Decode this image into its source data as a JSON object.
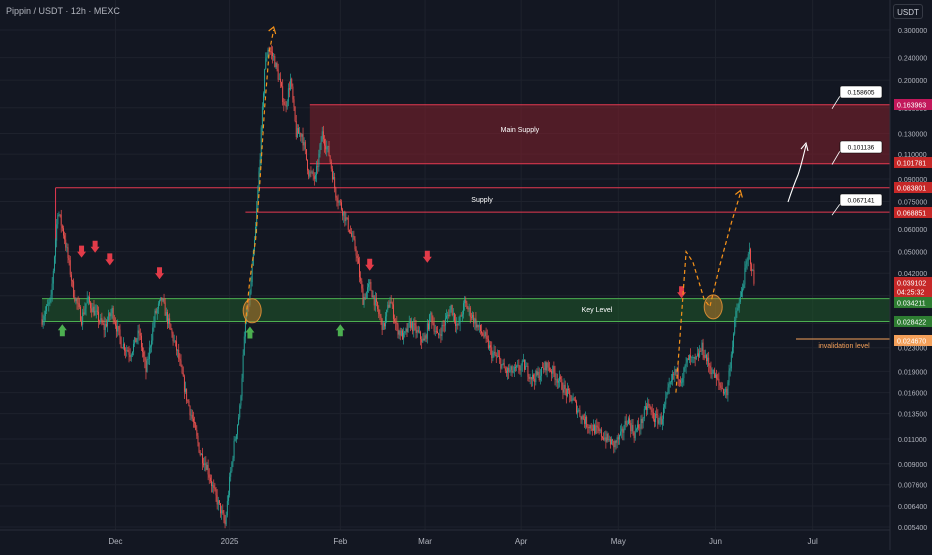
{
  "header": {
    "symbol_title": "Pippin / USDT · 12h · MEXC",
    "currency": "USDT"
  },
  "colors": {
    "background": "#131722",
    "grid": "#1e222d",
    "axis_text": "#b2b5be",
    "candle_up": "#26a69a",
    "candle_down": "#ef5350",
    "supply_zone": "#7a1f2b",
    "key_zone": "#1f5a2a",
    "projection": "#f7931a",
    "arrow_down": "#e23b49",
    "arrow_up": "#4caf50",
    "invalidation": "#f4a05a"
  },
  "chart_data": {
    "type": "candlestick",
    "price_scale": "log",
    "y_ticks": [
      "0.300000",
      "0.240000",
      "0.200000",
      "0.160000",
      "0.130000",
      "0.110000",
      "0.090000",
      "0.075000",
      "0.060000",
      "0.050000",
      "0.042000",
      "0.035000",
      "0.028000",
      "0.023000",
      "0.019000",
      "0.016000",
      "0.013500",
      "0.011000",
      "0.009000",
      "0.007600",
      "0.006400",
      "0.005400"
    ],
    "x_ticks": [
      "Dec",
      "2025",
      "Feb",
      "Mar",
      "Apr",
      "May",
      "Jun",
      "Jul"
    ],
    "price_labels": [
      {
        "text": "0.163963",
        "color": "#c2185b"
      },
      {
        "text": "0.101781",
        "color": "#c62828"
      },
      {
        "text": "0.083801",
        "color": "#c62828"
      },
      {
        "text": "0.068851",
        "color": "#c62828"
      },
      {
        "text": "0.039102",
        "color": "#c62828"
      },
      {
        "text": "04:25:32",
        "color": "#c62828"
      },
      {
        "text": "0.034211",
        "color": "#2e7d32"
      },
      {
        "text": "0.028422",
        "color": "#2e7d32"
      },
      {
        "text": "0.024670",
        "color": "#f4a05a"
      }
    ],
    "target_labels": [
      {
        "text": "0.158605",
        "price": 0.158605
      },
      {
        "text": "0.101136",
        "price": 0.101136
      },
      {
        "text": "0.067141",
        "price": 0.067141
      }
    ],
    "zones": [
      {
        "label": "Main Supply",
        "top": 0.163963,
        "bottom": 0.101781,
        "type": "supply"
      },
      {
        "label": "Supply",
        "top": 0.083801,
        "bottom": 0.068851,
        "type": "supply_outline"
      },
      {
        "label": "Key Level",
        "top": 0.034211,
        "bottom": 0.028422,
        "type": "key"
      }
    ],
    "invalidation": {
      "label": "invalidation level",
      "price": 0.02467
    },
    "last_price": 0.039102,
    "path": [
      [
        0,
        0.029
      ],
      [
        8,
        0.034
      ],
      [
        14,
        0.07
      ],
      [
        20,
        0.056
      ],
      [
        28,
        0.036
      ],
      [
        35,
        0.029
      ],
      [
        40,
        0.034
      ],
      [
        48,
        0.03
      ],
      [
        55,
        0.027
      ],
      [
        62,
        0.031
      ],
      [
        70,
        0.024
      ],
      [
        78,
        0.022
      ],
      [
        86,
        0.026
      ],
      [
        92,
        0.019
      ],
      [
        100,
        0.03
      ],
      [
        106,
        0.034
      ],
      [
        112,
        0.028
      ],
      [
        120,
        0.022
      ],
      [
        127,
        0.016
      ],
      [
        134,
        0.0125
      ],
      [
        140,
        0.0098
      ],
      [
        146,
        0.0088
      ],
      [
        152,
        0.0072
      ],
      [
        158,
        0.0062
      ],
      [
        162,
        0.0055
      ],
      [
        166,
        0.0078
      ],
      [
        170,
        0.0105
      ],
      [
        175,
        0.014
      ],
      [
        180,
        0.028
      ],
      [
        184,
        0.035
      ],
      [
        189,
        0.06
      ],
      [
        193,
        0.11
      ],
      [
        197,
        0.22
      ],
      [
        200,
        0.26
      ],
      [
        205,
        0.24
      ],
      [
        210,
        0.2
      ],
      [
        215,
        0.16
      ],
      [
        220,
        0.2
      ],
      [
        225,
        0.13
      ],
      [
        230,
        0.13
      ],
      [
        236,
        0.095
      ],
      [
        242,
        0.09
      ],
      [
        248,
        0.13
      ],
      [
        254,
        0.11
      ],
      [
        260,
        0.08
      ],
      [
        266,
        0.07
      ],
      [
        272,
        0.06
      ],
      [
        278,
        0.05
      ],
      [
        284,
        0.034
      ],
      [
        290,
        0.038
      ],
      [
        296,
        0.032
      ],
      [
        302,
        0.027
      ],
      [
        308,
        0.034
      ],
      [
        314,
        0.027
      ],
      [
        320,
        0.025
      ],
      [
        326,
        0.028
      ],
      [
        332,
        0.026
      ],
      [
        338,
        0.024
      ],
      [
        344,
        0.03
      ],
      [
        350,
        0.025
      ],
      [
        356,
        0.028
      ],
      [
        362,
        0.032
      ],
      [
        368,
        0.027
      ],
      [
        374,
        0.033
      ],
      [
        380,
        0.03
      ],
      [
        386,
        0.027
      ],
      [
        392,
        0.025
      ],
      [
        398,
        0.022
      ],
      [
        404,
        0.021
      ],
      [
        410,
        0.019
      ],
      [
        418,
        0.019
      ],
      [
        426,
        0.02
      ],
      [
        434,
        0.018
      ],
      [
        440,
        0.0185
      ],
      [
        446,
        0.02
      ],
      [
        452,
        0.019
      ],
      [
        458,
        0.0175
      ],
      [
        464,
        0.016
      ],
      [
        470,
        0.015
      ],
      [
        476,
        0.0135
      ],
      [
        482,
        0.0125
      ],
      [
        488,
        0.012
      ],
      [
        494,
        0.0115
      ],
      [
        500,
        0.011
      ],
      [
        506,
        0.0105
      ],
      [
        512,
        0.0112
      ],
      [
        518,
        0.013
      ],
      [
        524,
        0.0115
      ],
      [
        530,
        0.0125
      ],
      [
        536,
        0.0145
      ],
      [
        542,
        0.013
      ],
      [
        548,
        0.0128
      ],
      [
        554,
        0.016
      ],
      [
        560,
        0.019
      ],
      [
        566,
        0.018
      ],
      [
        572,
        0.021
      ],
      [
        578,
        0.0205
      ],
      [
        584,
        0.023
      ],
      [
        590,
        0.02
      ],
      [
        596,
        0.018
      ],
      [
        602,
        0.0165
      ],
      [
        606,
        0.016
      ],
      [
        610,
        0.022
      ],
      [
        614,
        0.03
      ],
      [
        618,
        0.034
      ],
      [
        622,
        0.042
      ],
      [
        626,
        0.05
      ],
      [
        630,
        0.039
      ]
    ],
    "anchors": [
      {
        "date": "Dec",
        "ci": 65
      },
      {
        "date": "2025",
        "ci": 166
      },
      {
        "date": "Feb",
        "ci": 264
      },
      {
        "date": "Mar",
        "ci": 339
      },
      {
        "date": "Apr",
        "ci": 424
      },
      {
        "date": "May",
        "ci": 510
      }
    ]
  }
}
